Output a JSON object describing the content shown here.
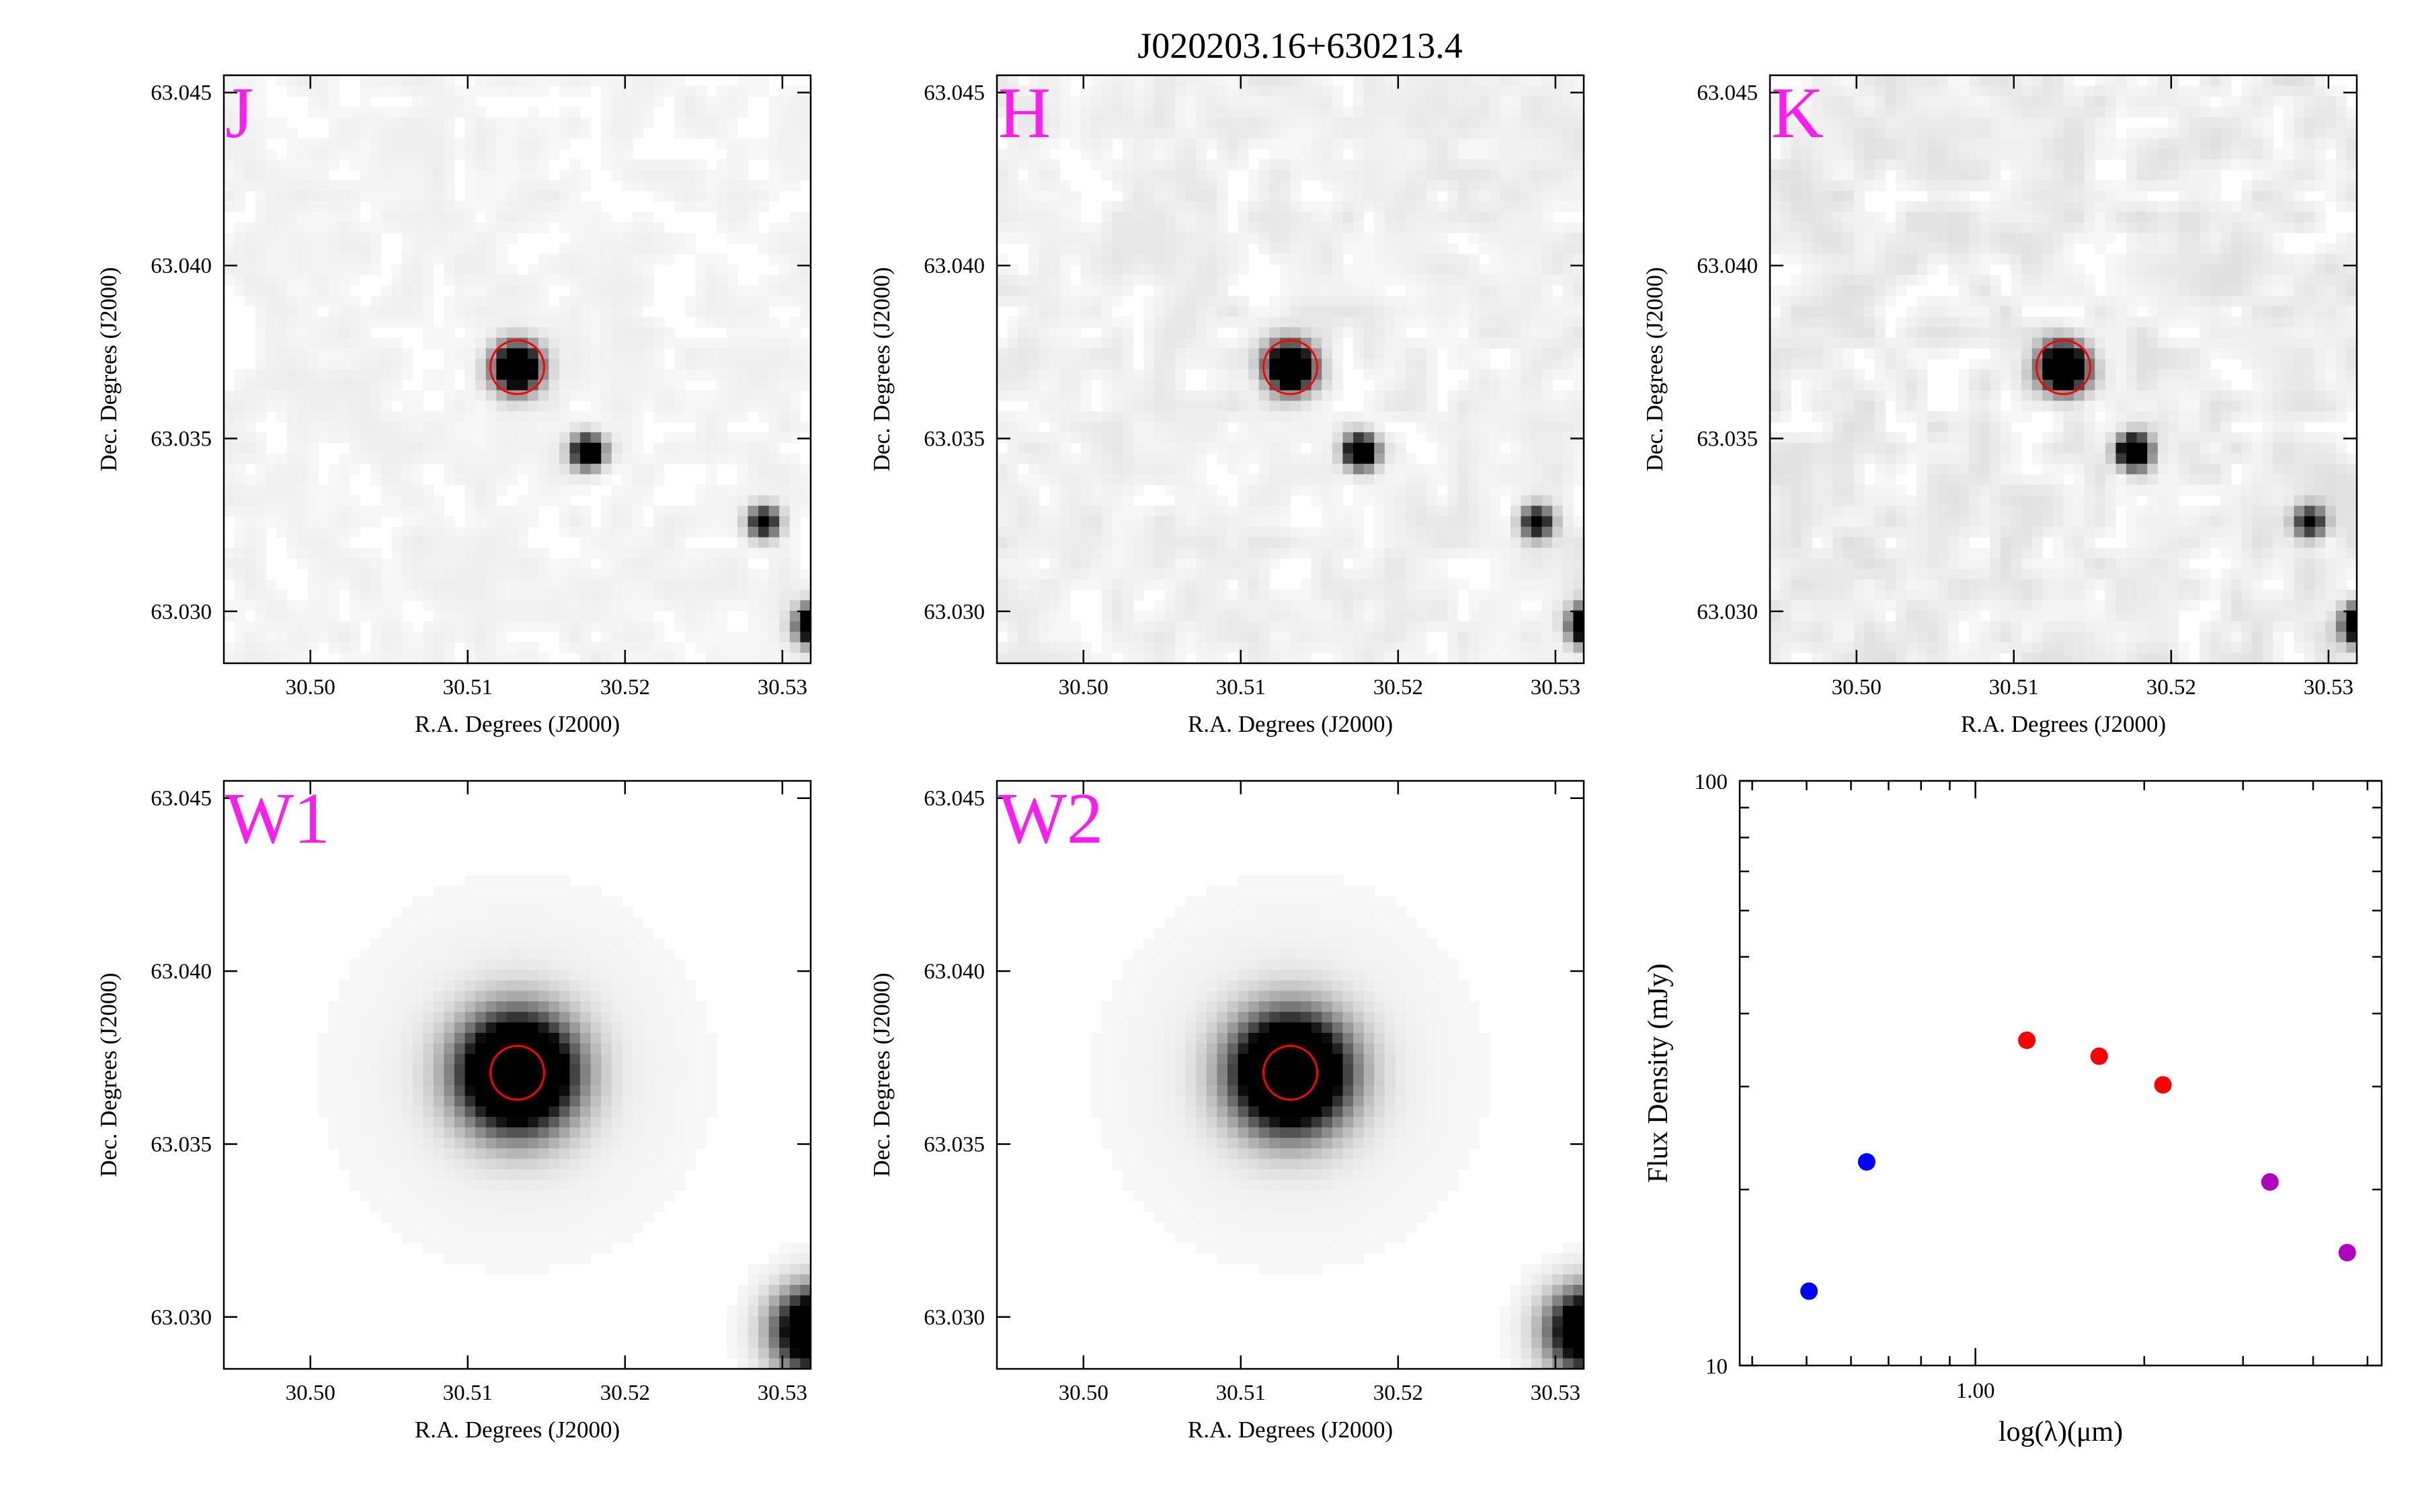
{
  "title": "J020203.16+630213.4",
  "image_panels": [
    {
      "band": "J",
      "seeing": "sharp",
      "bright_src": 0.85,
      "src2": 0.75,
      "src3": 0.55,
      "src4": 0.95,
      "noise": 0.03
    },
    {
      "band": "H",
      "seeing": "sharp",
      "bright_src": 0.9,
      "src2": 0.85,
      "src3": 0.55,
      "src4": 0.95,
      "noise": 0.045
    },
    {
      "band": "K",
      "seeing": "sharp",
      "bright_src": 0.92,
      "src2": 0.88,
      "src3": 0.5,
      "src4": 0.95,
      "noise": 0.06
    },
    {
      "band": "W1",
      "seeing": "broad",
      "bright_src": 1.0,
      "src2": 0.0,
      "src3": 0.0,
      "src4": 0.85,
      "noise": 0.0
    },
    {
      "band": "W2",
      "seeing": "broad",
      "bright_src": 1.0,
      "src2": 0.0,
      "src3": 0.0,
      "src4": 0.8,
      "noise": 0.0
    }
  ],
  "image_axes": {
    "xlabel": "R.A. Degrees (J2000)",
    "ylabel": "Dec. Degrees (J2000)",
    "xlim": [
      30.4945,
      30.5318
    ],
    "ylim": [
      63.0285,
      63.0455
    ],
    "xticks": [
      "30.50",
      "30.51",
      "30.52",
      "30.53"
    ],
    "yticks": [
      "63.030",
      "63.035",
      "63.040",
      "63.045"
    ],
    "target_ra": 30.51315,
    "target_dec": 63.03706,
    "aperture_color": "#ff0000"
  },
  "chart_data": {
    "type": "scatter",
    "xlabel": "log(λ)(μm)",
    "ylabel": "Flux Density (mJy)",
    "x_scale": "log",
    "y_scale": "log",
    "xlim": [
      0.38,
      5.3
    ],
    "ylim": [
      10,
      100
    ],
    "xticks": [
      "1.00"
    ],
    "yticks": [
      "10",
      "100"
    ],
    "grid": false,
    "series": [
      {
        "color": "#0000ff",
        "x": [
          0.505,
          0.64
        ],
        "y": [
          13.4,
          22.3
        ]
      },
      {
        "color": "#ff0000",
        "x": [
          1.235,
          1.662,
          2.159
        ],
        "y": [
          36.0,
          33.8,
          30.2
        ]
      },
      {
        "color": "#b000c0",
        "x": [
          3.35,
          4.6
        ],
        "y": [
          20.6,
          15.6
        ]
      }
    ]
  }
}
